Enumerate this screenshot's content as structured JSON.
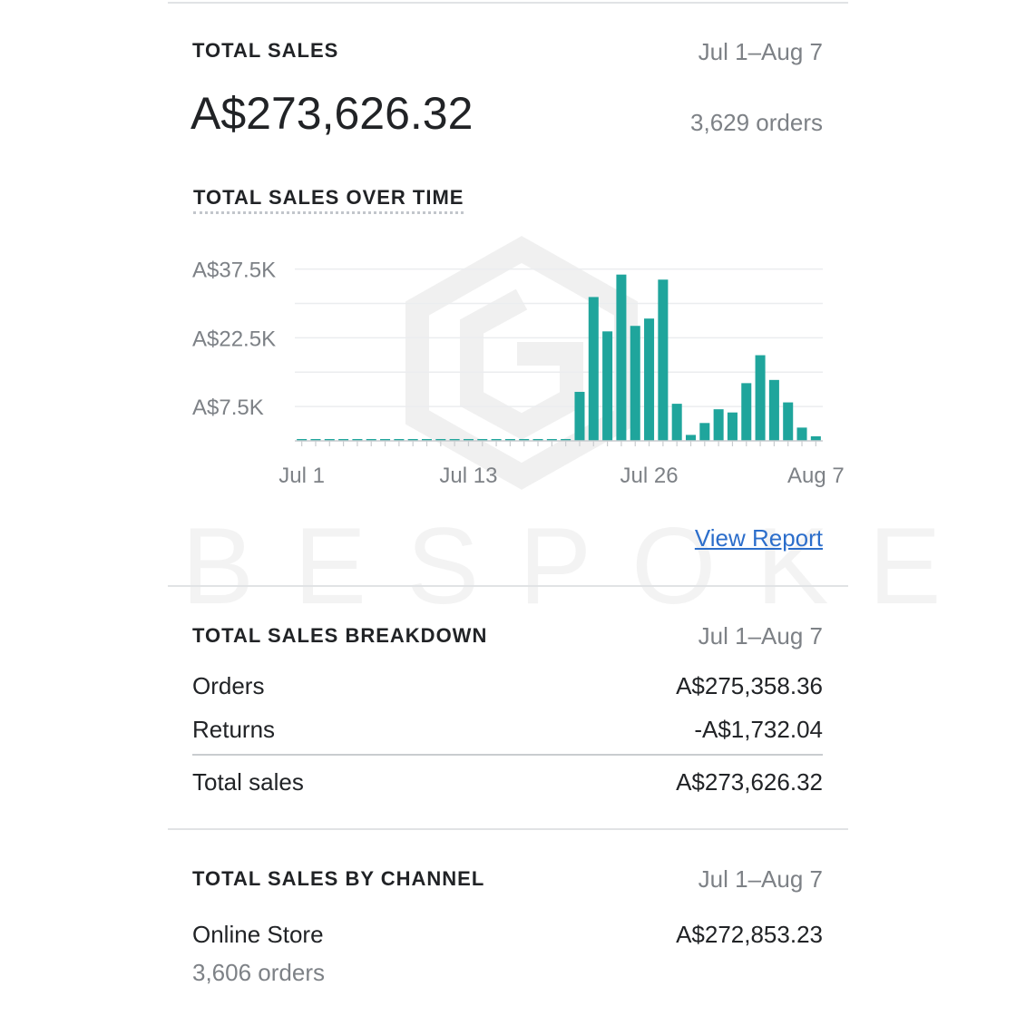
{
  "watermark": "BESPOKE",
  "summary": {
    "title": "TOTAL SALES",
    "date_range": "Jul 1–Aug 7",
    "amount": "A$273,626.32",
    "orders": "3,629 orders"
  },
  "chart_section": {
    "title": "TOTAL SALES OVER TIME",
    "view_report": "View Report"
  },
  "chart_data": {
    "type": "bar",
    "color": "#1fa59c",
    "y_ticks": [
      {
        "value": 37500,
        "label": "A$37.5K"
      },
      {
        "value": 22500,
        "label": "A$22.5K"
      },
      {
        "value": 7500,
        "label": "A$7.5K"
      }
    ],
    "ylim": [
      0,
      40000
    ],
    "x_tick_labels": [
      {
        "day": 1,
        "label": "Jul 1"
      },
      {
        "day": 13,
        "label": "Jul 13"
      },
      {
        "day": 26,
        "label": "Jul 26"
      },
      {
        "day": 38,
        "label": "Aug 7"
      }
    ],
    "categories": [
      "Jul 1",
      "Jul 2",
      "Jul 3",
      "Jul 4",
      "Jul 5",
      "Jul 6",
      "Jul 7",
      "Jul 8",
      "Jul 9",
      "Jul 10",
      "Jul 11",
      "Jul 12",
      "Jul 13",
      "Jul 14",
      "Jul 15",
      "Jul 16",
      "Jul 17",
      "Jul 18",
      "Jul 19",
      "Jul 20",
      "Jul 21",
      "Jul 22",
      "Jul 23",
      "Jul 24",
      "Jul 25",
      "Jul 26",
      "Jul 27",
      "Jul 28",
      "Jul 29",
      "Jul 30",
      "Jul 31",
      "Aug 1",
      "Aug 2",
      "Aug 3",
      "Aug 4",
      "Aug 5",
      "Aug 6",
      "Aug 7"
    ],
    "values": [
      400,
      400,
      400,
      400,
      400,
      400,
      400,
      400,
      400,
      400,
      400,
      400,
      400,
      400,
      400,
      400,
      400,
      400,
      400,
      400,
      10700,
      31400,
      23900,
      36300,
      25100,
      26700,
      35200,
      8100,
      1300,
      3900,
      6900,
      6200,
      12600,
      18700,
      13300,
      8400,
      2900,
      1000
    ]
  },
  "breakdown": {
    "title": "TOTAL SALES BREAKDOWN",
    "date_range": "Jul 1–Aug 7",
    "rows": [
      {
        "label": "Orders",
        "value": "A$275,358.36"
      },
      {
        "label": "Returns",
        "value": "-A$1,732.04"
      }
    ],
    "total": {
      "label": "Total sales",
      "value": "A$273,626.32"
    }
  },
  "channel": {
    "title": "TOTAL SALES BY CHANNEL",
    "date_range": "Jul 1–Aug 7",
    "name": "Online Store",
    "value": "A$272,853.23",
    "orders": "3,606 orders"
  }
}
